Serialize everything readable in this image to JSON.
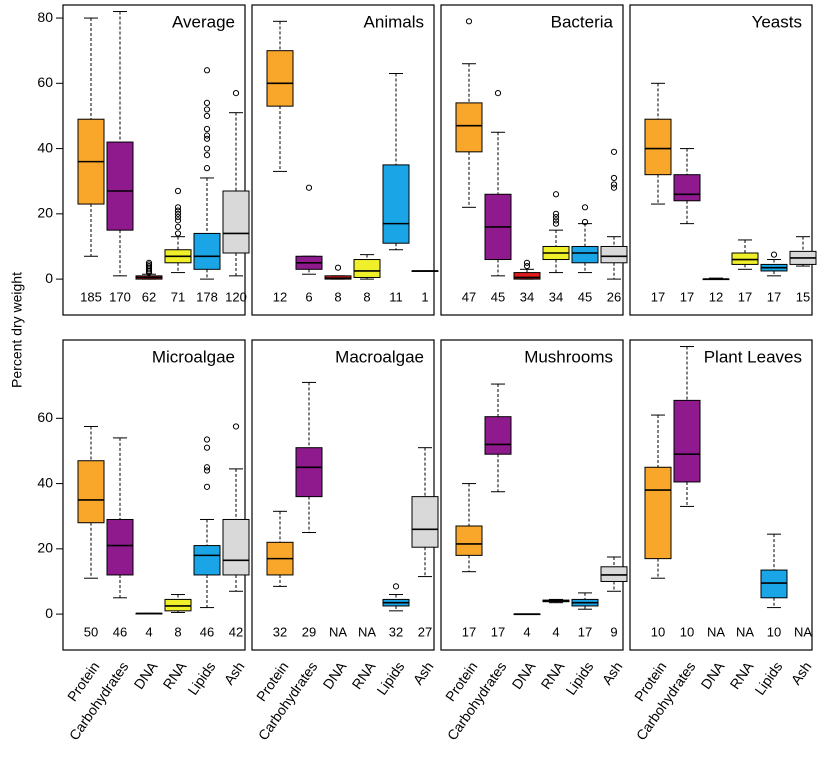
{
  "chart_data": [
    {
      "type": "box",
      "title": "Average",
      "ylabel": "Percent dry weight",
      "colors": [
        "#f9a72b",
        "#8e1a8e",
        "#e31a1c",
        "#f0f02a",
        "#1aa6e6",
        "#d9d9d9"
      ],
      "stats": [
        [
          7,
          23,
          36,
          49,
          80
        ],
        [
          1,
          15,
          27,
          42,
          82
        ],
        [
          0,
          0,
          0.5,
          1,
          1.5
        ],
        [
          2,
          5,
          7,
          9,
          13
        ],
        [
          0,
          3,
          7,
          14,
          31
        ],
        [
          1,
          8,
          14,
          27,
          51
        ]
      ],
      "outliers": [
        [],
        [],
        [
          2,
          2.5,
          3,
          3.5,
          4,
          4.5,
          5
        ],
        [
          14,
          16,
          18,
          19,
          20,
          21,
          22,
          27
        ],
        [
          34,
          38,
          40,
          43,
          44,
          46,
          50,
          52,
          54,
          64
        ],
        [
          57
        ]
      ],
      "n": [
        185,
        170,
        62,
        71,
        178,
        120
      ],
      "ylim": [
        -11,
        84
      ],
      "yticks": [
        0,
        20,
        40,
        60,
        80
      ]
    },
    {
      "type": "box",
      "title": "Animals",
      "colors": [
        "#f9a72b",
        "#8e1a8e",
        "#e31a1c",
        "#f0f02a",
        "#1aa6e6",
        "#d9d9d9"
      ],
      "stats": [
        [
          33,
          53,
          60,
          70,
          79
        ],
        [
          1.5,
          3,
          5,
          7,
          7
        ],
        [
          0,
          0,
          0.3,
          1,
          1
        ],
        [
          0,
          0.5,
          2.5,
          6,
          7.5
        ],
        [
          9,
          11,
          17,
          35,
          63
        ],
        [
          2.5,
          2.5,
          2.5,
          2.5,
          2.5
        ]
      ],
      "outliers": [
        [],
        [
          28
        ],
        [
          3.5
        ],
        [],
        [],
        []
      ],
      "n": [
        12,
        6,
        8,
        8,
        11,
        1
      ],
      "ylim": [
        -11,
        84
      ]
    },
    {
      "type": "box",
      "title": "Bacteria",
      "colors": [
        "#f9a72b",
        "#8e1a8e",
        "#e31a1c",
        "#f0f02a",
        "#1aa6e6",
        "#d9d9d9"
      ],
      "stats": [
        [
          22,
          39,
          47,
          54,
          66
        ],
        [
          1,
          6,
          16,
          26,
          45
        ],
        [
          0,
          0,
          0.5,
          2,
          3
        ],
        [
          2,
          6,
          8,
          10,
          15
        ],
        [
          2,
          5,
          8,
          10,
          17
        ],
        [
          0,
          5,
          7,
          10,
          13
        ]
      ],
      "outliers": [
        [
          79
        ],
        [
          57
        ],
        [
          4,
          5
        ],
        [
          17,
          18,
          19,
          20,
          26
        ],
        [
          17.5,
          22
        ],
        [
          28,
          29,
          31,
          39
        ]
      ],
      "n": [
        47,
        45,
        34,
        34,
        45,
        26
      ],
      "ylim": [
        -11,
        84
      ]
    },
    {
      "type": "box",
      "title": "Yeasts",
      "colors": [
        "#f9a72b",
        "#8e1a8e",
        "#e31a1c",
        "#f0f02a",
        "#1aa6e6",
        "#d9d9d9"
      ],
      "stats": [
        [
          23,
          32,
          40,
          49,
          60
        ],
        [
          17,
          24,
          26,
          32,
          40
        ],
        [
          0,
          0,
          0,
          0,
          0.3
        ],
        [
          3,
          4.5,
          6,
          8,
          12
        ],
        [
          1,
          2.5,
          3.5,
          4.5,
          6
        ],
        [
          4,
          4.5,
          6.5,
          8.5,
          13
        ]
      ],
      "outliers": [
        [],
        [],
        [],
        [],
        [
          7.5
        ],
        []
      ],
      "n": [
        17,
        17,
        12,
        17,
        17,
        15
      ],
      "ylim": [
        -11,
        84
      ]
    },
    {
      "type": "box",
      "title": "Microalgae",
      "categories": [
        "Protein",
        "Carbohydrates",
        "DNA",
        "RNA",
        "Lipids",
        "Ash"
      ],
      "colors": [
        "#f9a72b",
        "#8e1a8e",
        "#e31a1c",
        "#f0f02a",
        "#1aa6e6",
        "#d9d9d9"
      ],
      "stats": [
        [
          11,
          28,
          35,
          47,
          57.5
        ],
        [
          5,
          12,
          21,
          29,
          54
        ],
        [
          0.2,
          0.2,
          0.2,
          0.2,
          0.2
        ],
        [
          0.5,
          1,
          2.5,
          4.5,
          6
        ],
        [
          2,
          12,
          18,
          21,
          29
        ],
        [
          7,
          12,
          16.5,
          29,
          44.5
        ]
      ],
      "outliers": [
        [],
        [],
        [],
        [],
        [
          39,
          44,
          45,
          51,
          53.5
        ],
        [
          57.5
        ]
      ],
      "n": [
        50,
        46,
        4,
        8,
        46,
        42
      ],
      "ylim": [
        -11,
        84
      ],
      "yticks": [
        0,
        20,
        40,
        60
      ]
    },
    {
      "type": "box",
      "title": "Macroalgae",
      "categories": [
        "Protein",
        "Carbohydrates",
        "DNA",
        "RNA",
        "Lipids",
        "Ash"
      ],
      "colors": [
        "#f9a72b",
        "#8e1a8e",
        "#e31a1c",
        "#f0f02a",
        "#1aa6e6",
        "#d9d9d9"
      ],
      "stats": [
        [
          8.5,
          12,
          17,
          22,
          31.5
        ],
        [
          25,
          36,
          45,
          51,
          71
        ],
        null,
        null,
        [
          1,
          2.5,
          3.5,
          4.5,
          6
        ],
        [
          11.5,
          20.5,
          26,
          36,
          51
        ]
      ],
      "outliers": [
        [],
        [],
        [],
        [],
        [
          8.5
        ],
        []
      ],
      "n": [
        32,
        29,
        "NA",
        "NA",
        32,
        27
      ],
      "ylim": [
        -11,
        84
      ]
    },
    {
      "type": "box",
      "title": "Mushrooms",
      "categories": [
        "Protein",
        "Carbohydrates",
        "DNA",
        "RNA",
        "Lipids",
        "Ash"
      ],
      "colors": [
        "#f9a72b",
        "#8e1a8e",
        "#e31a1c",
        "#f0f02a",
        "#1aa6e6",
        "#d9d9d9"
      ],
      "stats": [
        [
          13,
          18,
          21.5,
          27,
          40
        ],
        [
          37.5,
          49,
          52,
          60.5,
          70.5
        ],
        [
          0,
          0,
          0,
          0,
          0
        ],
        [
          3.5,
          3.8,
          4,
          4.3,
          4.5
        ],
        [
          1.5,
          2.5,
          3.5,
          4.5,
          6.5
        ],
        [
          7,
          10,
          12,
          14.5,
          17.5
        ]
      ],
      "outliers": [
        [],
        [],
        [],
        [],
        [],
        []
      ],
      "n": [
        17,
        17,
        4,
        4,
        17,
        9
      ],
      "ylim": [
        -11,
        84
      ]
    },
    {
      "type": "box",
      "title": "Plant Leaves",
      "categories": [
        "Protein",
        "Carbohydrates",
        "DNA",
        "RNA",
        "Lipids",
        "Ash"
      ],
      "colors": [
        "#f9a72b",
        "#8e1a8e",
        "#e31a1c",
        "#f0f02a",
        "#1aa6e6",
        "#d9d9d9"
      ],
      "stats": [
        [
          11,
          17,
          38,
          45,
          61
        ],
        [
          33,
          40.5,
          49,
          65.5,
          82
        ],
        null,
        null,
        [
          2,
          5,
          9.5,
          13.5,
          24.5
        ],
        null
      ],
      "outliers": [
        [],
        [],
        [],
        [],
        [],
        []
      ],
      "n": [
        10,
        10,
        "NA",
        "NA",
        10,
        "NA"
      ],
      "ylim": [
        -11,
        84
      ]
    }
  ]
}
